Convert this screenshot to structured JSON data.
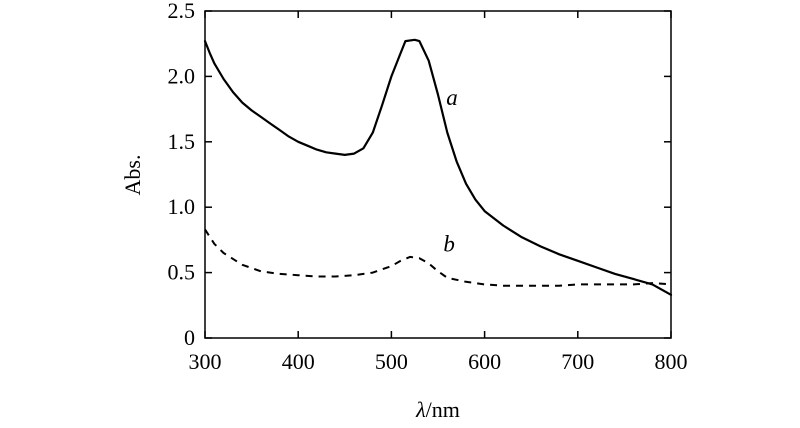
{
  "chart_data": {
    "type": "line",
    "title": "",
    "xlabel": {
      "symbol": "λ",
      "unit": "/nm"
    },
    "ylabel": "Abs.",
    "xlim": [
      300,
      800
    ],
    "ylim": [
      0,
      2.5
    ],
    "x_ticks": [
      300,
      400,
      500,
      600,
      700,
      800
    ],
    "x_tick_labels": [
      "300",
      "400",
      "500",
      "600",
      "700",
      "800"
    ],
    "y_ticks": [
      0,
      0.5,
      1.0,
      1.5,
      2.0,
      2.5
    ],
    "y_tick_labels": [
      "0",
      "0.5",
      "1.0",
      "1.5",
      "2.0",
      "2.5"
    ],
    "grid": false,
    "series": [
      {
        "name": "a",
        "style": "solid",
        "color": "#000000",
        "points": [
          [
            300,
            2.27
          ],
          [
            305,
            2.18
          ],
          [
            310,
            2.1
          ],
          [
            320,
            1.98
          ],
          [
            330,
            1.88
          ],
          [
            340,
            1.8
          ],
          [
            350,
            1.74
          ],
          [
            360,
            1.69
          ],
          [
            370,
            1.64
          ],
          [
            380,
            1.59
          ],
          [
            390,
            1.54
          ],
          [
            400,
            1.5
          ],
          [
            410,
            1.47
          ],
          [
            420,
            1.44
          ],
          [
            430,
            1.42
          ],
          [
            440,
            1.41
          ],
          [
            450,
            1.4
          ],
          [
            460,
            1.41
          ],
          [
            470,
            1.45
          ],
          [
            480,
            1.57
          ],
          [
            490,
            1.78
          ],
          [
            500,
            2.0
          ],
          [
            510,
            2.18
          ],
          [
            515,
            2.27
          ],
          [
            525,
            2.28
          ],
          [
            530,
            2.27
          ],
          [
            540,
            2.12
          ],
          [
            550,
            1.86
          ],
          [
            560,
            1.57
          ],
          [
            570,
            1.35
          ],
          [
            580,
            1.18
          ],
          [
            590,
            1.06
          ],
          [
            600,
            0.97
          ],
          [
            620,
            0.86
          ],
          [
            640,
            0.77
          ],
          [
            660,
            0.7
          ],
          [
            680,
            0.64
          ],
          [
            700,
            0.59
          ],
          [
            720,
            0.54
          ],
          [
            740,
            0.49
          ],
          [
            760,
            0.45
          ],
          [
            780,
            0.41
          ],
          [
            800,
            0.33
          ]
        ]
      },
      {
        "name": "b",
        "style": "dashed",
        "color": "#000000",
        "points": [
          [
            300,
            0.83
          ],
          [
            310,
            0.72
          ],
          [
            320,
            0.65
          ],
          [
            340,
            0.56
          ],
          [
            360,
            0.51
          ],
          [
            380,
            0.49
          ],
          [
            400,
            0.48
          ],
          [
            420,
            0.47
          ],
          [
            440,
            0.47
          ],
          [
            460,
            0.48
          ],
          [
            480,
            0.5
          ],
          [
            500,
            0.55
          ],
          [
            510,
            0.59
          ],
          [
            520,
            0.62
          ],
          [
            530,
            0.61
          ],
          [
            540,
            0.57
          ],
          [
            550,
            0.51
          ],
          [
            560,
            0.46
          ],
          [
            580,
            0.43
          ],
          [
            600,
            0.41
          ],
          [
            620,
            0.4
          ],
          [
            640,
            0.4
          ],
          [
            660,
            0.4
          ],
          [
            680,
            0.4
          ],
          [
            700,
            0.41
          ],
          [
            720,
            0.41
          ],
          [
            740,
            0.41
          ],
          [
            760,
            0.41
          ],
          [
            780,
            0.42
          ],
          [
            800,
            0.41
          ]
        ]
      }
    ],
    "annotations": [
      {
        "text": "a",
        "series": "a",
        "x": 565,
        "y": 1.78
      },
      {
        "text": "b",
        "series": "b",
        "x": 562,
        "y": 0.66
      }
    ]
  }
}
